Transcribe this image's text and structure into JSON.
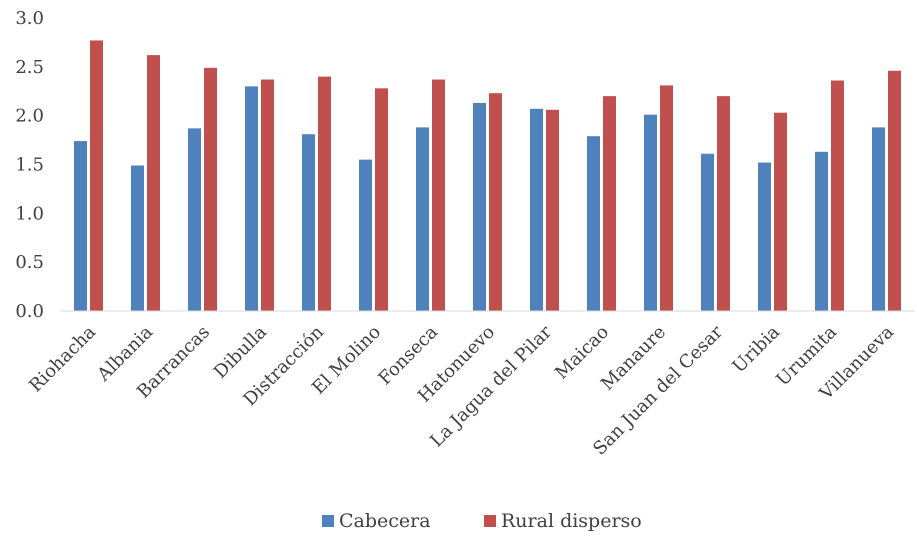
{
  "chart_data": {
    "type": "bar",
    "title": "",
    "xlabel": "",
    "ylabel": "",
    "ylim": [
      0,
      3.0
    ],
    "yticks": [
      "0.0",
      "0.5",
      "1.0",
      "1.5",
      "2.0",
      "2.5",
      "3.0"
    ],
    "ytick_values": [
      0,
      0.5,
      1.0,
      1.5,
      2.0,
      2.5,
      3.0
    ],
    "grid": false,
    "legend_position": "bottom",
    "categories": [
      "Riohacha",
      "Albania",
      "Barrancas",
      "Dibulla",
      "Distracción",
      "El Molino",
      "Fonseca",
      "Hatonuevo",
      "La Jagua del Pilar",
      "Maicao",
      "Manaure",
      "San Juan del Cesar",
      "Uribia",
      "Urumita",
      "Villanueva"
    ],
    "series": [
      {
        "name": "Cabecera",
        "color": "#4F81BD",
        "values": [
          1.74,
          1.49,
          1.87,
          2.3,
          1.81,
          1.55,
          1.88,
          2.13,
          2.07,
          1.79,
          2.01,
          1.61,
          1.52,
          1.63,
          1.88
        ]
      },
      {
        "name": "Rural disperso",
        "color": "#C0504D",
        "values": [
          2.77,
          2.62,
          2.49,
          2.37,
          2.4,
          2.28,
          2.37,
          2.23,
          2.06,
          2.2,
          2.31,
          2.2,
          2.03,
          2.36,
          2.46
        ]
      }
    ]
  }
}
